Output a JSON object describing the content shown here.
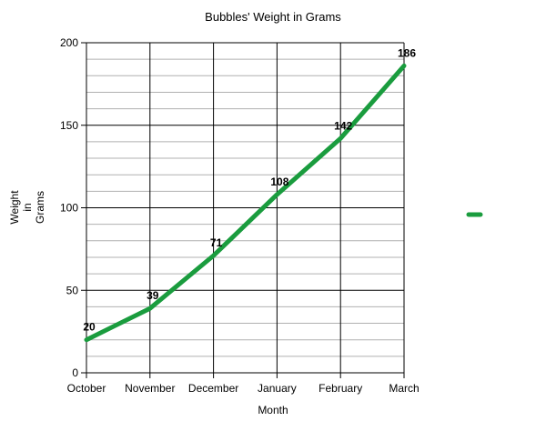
{
  "chart_data": {
    "type": "line",
    "title": "Bubbles' Weight in Grams",
    "xlabel": "Month",
    "ylabel": [
      "Weight",
      "in",
      "Grams"
    ],
    "categories": [
      "October",
      "November",
      "December",
      "January",
      "February",
      "March"
    ],
    "series": [
      {
        "values": [
          20,
          39,
          71,
          108,
          142,
          186
        ],
        "color": "#1a9c3e"
      }
    ],
    "ylim": [
      0,
      200
    ],
    "yticks": [
      0,
      50,
      100,
      150,
      200
    ],
    "minor_grid_step": 10,
    "grid": true,
    "data_labels": true,
    "legend": "right"
  }
}
